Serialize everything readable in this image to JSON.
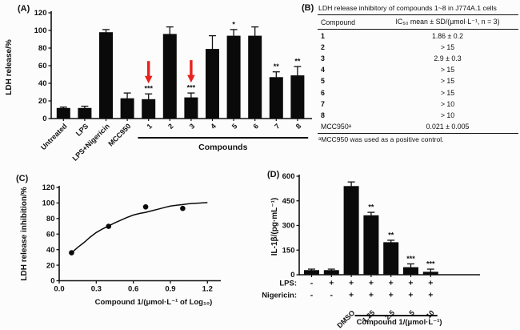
{
  "panels": {
    "a_label": "(A)",
    "b_label": "(B)",
    "c_label": "(C)",
    "d_label": "(D)"
  },
  "table_b": {
    "title": "LDH release inhibitory of compounds 1~8 in J774A.1 cells",
    "columns": [
      "Compound",
      "IC₅₀ mean ± SD/(μmol·L⁻¹, n = 3)"
    ],
    "rows": [
      [
        "1",
        "1.86 ± 0.2"
      ],
      [
        "2",
        "> 15"
      ],
      [
        "3",
        "2.9 ± 0.3"
      ],
      [
        "4",
        "> 15"
      ],
      [
        "5",
        "> 15"
      ],
      [
        "6",
        "> 15"
      ],
      [
        "7",
        "> 10"
      ],
      [
        "8",
        "> 10"
      ],
      [
        "MCC950ᵃ",
        "0.021 ± 0.005"
      ]
    ],
    "footnote": "ᵃMCC950 was used as a positive control."
  },
  "chart_data": [
    {
      "id": "A",
      "type": "bar",
      "ylabel": "LDH release/%",
      "ylim": [
        0,
        120
      ],
      "yticks": [
        0,
        20,
        40,
        60,
        80,
        100,
        120
      ],
      "categories": [
        "Untreated",
        "LPS",
        "LPS+Nigericin",
        "MCC950",
        "1",
        "2",
        "3",
        "4",
        "5",
        "6",
        "7",
        "8"
      ],
      "values": [
        12,
        12,
        98,
        23,
        22,
        96,
        24,
        79,
        94,
        94,
        47,
        49
      ],
      "errors": [
        1,
        2,
        3,
        6,
        6,
        8,
        5,
        15,
        7,
        10,
        6,
        10
      ],
      "sig": [
        "",
        "",
        "",
        "",
        "***",
        "",
        "***",
        "",
        "*",
        "",
        "**",
        "**"
      ],
      "arrow_indices": [
        4,
        6
      ],
      "arrow_color": "#e8221c",
      "bar_color": "#0a0a0a",
      "group_label": "Compounds",
      "group_span": [
        4,
        11
      ],
      "grid": "off",
      "legend": "none"
    },
    {
      "id": "C",
      "type": "scatter",
      "xlabel": "Compound 1/(μmol·L⁻¹ of Log₁₀)",
      "ylabel": "LDH release inhibition/%",
      "xlim": [
        0,
        1.2
      ],
      "ylim": [
        0,
        120
      ],
      "xticks": [
        "0.0",
        "0.3",
        "0.6",
        "0.9",
        "1.2"
      ],
      "yticks": [
        0,
        20,
        40,
        60,
        80,
        100,
        120
      ],
      "points": [
        [
          0.1,
          36
        ],
        [
          0.4,
          70
        ],
        [
          0.7,
          95
        ],
        [
          1.0,
          93
        ]
      ],
      "curve": [
        [
          0.1,
          36
        ],
        [
          0.15,
          43
        ],
        [
          0.2,
          49
        ],
        [
          0.25,
          56
        ],
        [
          0.3,
          62
        ],
        [
          0.35,
          66.5
        ],
        [
          0.4,
          70.5
        ],
        [
          0.45,
          74.5
        ],
        [
          0.5,
          78
        ],
        [
          0.55,
          81.5
        ],
        [
          0.6,
          84.5
        ],
        [
          0.65,
          86.5
        ],
        [
          0.7,
          88
        ],
        [
          0.75,
          90
        ],
        [
          0.8,
          92
        ],
        [
          0.85,
          94
        ],
        [
          0.9,
          96
        ],
        [
          0.95,
          97
        ],
        [
          1.0,
          98
        ],
        [
          1.05,
          99
        ],
        [
          1.1,
          99.5
        ],
        [
          1.15,
          100
        ],
        [
          1.2,
          100.5
        ]
      ],
      "point_color": "#0a0a0a",
      "grid": "off",
      "legend": "none"
    },
    {
      "id": "D",
      "type": "bar",
      "ylabel": "IL-1β/(pg·mL⁻¹)",
      "ylim": [
        0,
        600
      ],
      "yticks": [
        0,
        150,
        300,
        450,
        600
      ],
      "categories": [
        "",
        "",
        "DMSO",
        "1.25",
        "2.5",
        "5",
        "10"
      ],
      "values": [
        28,
        28,
        540,
        362,
        198,
        46,
        18
      ],
      "errors": [
        6,
        6,
        25,
        18,
        12,
        20,
        16
      ],
      "sig": [
        "",
        "",
        "",
        "**",
        "**",
        "***",
        "***"
      ],
      "bar_color": "#0a0a0a",
      "treatment_rows": [
        {
          "label": "LPS:",
          "signs": [
            "-",
            "+",
            "+",
            "+",
            "+",
            "+",
            "+"
          ]
        },
        {
          "label": "Nigericin:",
          "signs": [
            "-",
            "-",
            "+",
            "+",
            "+",
            "+",
            "+"
          ]
        }
      ],
      "group_label": "Compound 1/(μmol·L⁻¹)",
      "group_span": [
        3,
        6
      ],
      "grid": "off",
      "legend": "none"
    }
  ]
}
